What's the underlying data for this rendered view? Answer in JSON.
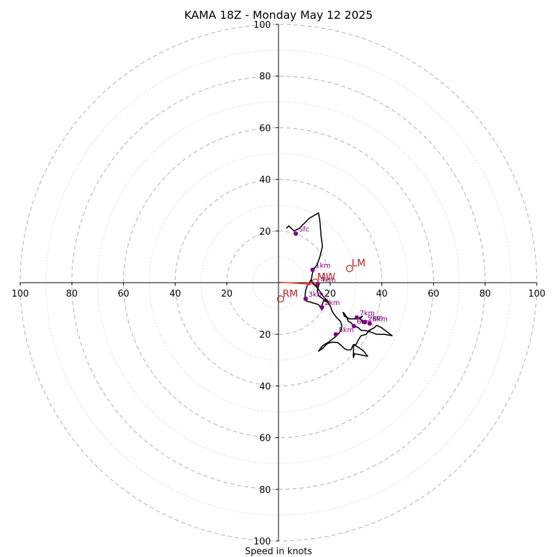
{
  "chart_data": {
    "type": "hodograph",
    "title": "KAMA 18Z - Monday May 12 2025",
    "xlabel": "Speed in knots",
    "xlim": [
      -100,
      100
    ],
    "ylim": [
      -100,
      100
    ],
    "ring_step_major": 20,
    "ring_step_minor": 10,
    "tick_values": [
      -100,
      -80,
      -60,
      -40,
      -20,
      20,
      40,
      60,
      80,
      100
    ],
    "tick_labels": [
      "100",
      "80",
      "60",
      "40",
      "20",
      "20",
      "40",
      "60",
      "80",
      "100"
    ],
    "hodograph_trace": [
      [
        3,
        21
      ],
      [
        4,
        22
      ],
      [
        6,
        20
      ],
      [
        8,
        21
      ],
      [
        10,
        23
      ],
      [
        12,
        25
      ],
      [
        15.5,
        27
      ],
      [
        16,
        24
      ],
      [
        16.5,
        18
      ],
      [
        17,
        14
      ],
      [
        16,
        10
      ],
      [
        15,
        7
      ],
      [
        13.5,
        5
      ],
      [
        13,
        3
      ],
      [
        12.7,
        1
      ],
      [
        13.3,
        0
      ],
      [
        14,
        -1
      ],
      [
        15,
        -2
      ],
      [
        15.8,
        -3
      ],
      [
        17,
        -5
      ],
      [
        18,
        -6
      ],
      [
        19,
        -7
      ],
      [
        19.5,
        -7.5
      ],
      [
        19,
        -7
      ],
      [
        17.5,
        -6.5
      ],
      [
        15.5,
        -5
      ],
      [
        15,
        -3
      ],
      [
        15.5,
        -1.5
      ],
      [
        13.5,
        -0.5
      ],
      [
        12.5,
        1
      ],
      [
        12,
        0
      ],
      [
        11,
        -1.5
      ],
      [
        10.5,
        -3
      ],
      [
        10.3,
        -5
      ],
      [
        10.5,
        -7
      ],
      [
        14,
        -8
      ],
      [
        15.5,
        -8.5
      ],
      [
        16.8,
        -10.5
      ],
      [
        16.5,
        -9.5
      ],
      [
        17.5,
        -7
      ],
      [
        19,
        -7.5
      ],
      [
        20,
        -9
      ],
      [
        21,
        -11.5
      ],
      [
        22.5,
        -13.5
      ],
      [
        24,
        -15
      ],
      [
        24.5,
        -16.5
      ],
      [
        24.3,
        -18
      ],
      [
        23.5,
        -19.5
      ],
      [
        22,
        -21
      ],
      [
        20,
        -22.5
      ],
      [
        19.5,
        -23
      ],
      [
        18.5,
        -23.5
      ],
      [
        17,
        -24.5
      ],
      [
        15.5,
        -26.5
      ],
      [
        17,
        -25.5
      ],
      [
        19,
        -23.5
      ],
      [
        21,
        -23
      ],
      [
        23,
        -23.2
      ],
      [
        24.5,
        -24.5
      ],
      [
        25.5,
        -25.5
      ],
      [
        26.5,
        -26
      ],
      [
        28,
        -26
      ],
      [
        29,
        -24
      ],
      [
        31,
        -25
      ],
      [
        33,
        -26.5
      ],
      [
        34.5,
        -28.5
      ],
      [
        29.5,
        -27.5
      ],
      [
        29,
        -29
      ],
      [
        29,
        -24
      ],
      [
        30,
        -24
      ],
      [
        31,
        -22
      ],
      [
        32,
        -20.5
      ],
      [
        34,
        -20
      ],
      [
        35,
        -18.5
      ],
      [
        37,
        -17.5
      ],
      [
        38,
        -16.5
      ],
      [
        40,
        -17.5
      ],
      [
        42,
        -19
      ],
      [
        44,
        -20.5
      ],
      [
        41,
        -20
      ],
      [
        38,
        -20
      ],
      [
        35.5,
        -19
      ],
      [
        33.5,
        -18.5
      ],
      [
        32,
        -18.5
      ],
      [
        31,
        -17.5
      ],
      [
        29,
        -16.5
      ],
      [
        28,
        -15.5
      ],
      [
        27,
        -15
      ],
      [
        26.5,
        -13.5
      ],
      [
        25.5,
        -12
      ],
      [
        25,
        -11.5
      ],
      [
        25.5,
        -13
      ],
      [
        27.5,
        -14
      ],
      [
        30,
        -14
      ],
      [
        31.5,
        -13.5
      ],
      [
        32.5,
        -13
      ],
      [
        31.5,
        -14
      ],
      [
        32.5,
        -15
      ],
      [
        33,
        -15.5
      ],
      [
        33.5,
        -15
      ],
      [
        32,
        -14.5
      ],
      [
        32.5,
        -15.5
      ],
      [
        33.5,
        -16
      ]
    ],
    "height_markers": [
      {
        "label": "Sfc",
        "x": 6.7,
        "y": 19
      },
      {
        "label": "1km",
        "x": 13.2,
        "y": 5
      },
      {
        "label": "2km",
        "x": 16.8,
        "y": -9.5
      },
      {
        "label": "3km",
        "x": 10.5,
        "y": -6.2
      },
      {
        "label": "4km",
        "x": 15.2,
        "y": -0.5
      },
      {
        "label": "5km",
        "x": 22.2,
        "y": -20
      },
      {
        "label": "6km",
        "x": 29.2,
        "y": -16.8
      },
      {
        "label": "7km",
        "x": 30.3,
        "y": -13.5
      },
      {
        "label": "8km",
        "x": 35.3,
        "y": -15.8
      },
      {
        "label": "9km",
        "x": 33.5,
        "y": -15.2
      }
    ],
    "motion_markers": [
      {
        "label": "LM",
        "x": 27.5,
        "y": 5.5
      },
      {
        "label": "MW",
        "x": 14.2,
        "y": 0.2
      },
      {
        "label": "RM",
        "x": 0.8,
        "y": -6.3
      }
    ],
    "mean_wind_vector": {
      "from": [
        0,
        0.2
      ],
      "to": [
        13,
        -0.5
      ]
    },
    "colors": {
      "trace": "#000000",
      "height_marker": "#800080",
      "motion_marker": "#b22222",
      "vector": "#e8352a",
      "ring_major": "#bbbbbb",
      "ring_minor": "#d0d0d0"
    }
  }
}
